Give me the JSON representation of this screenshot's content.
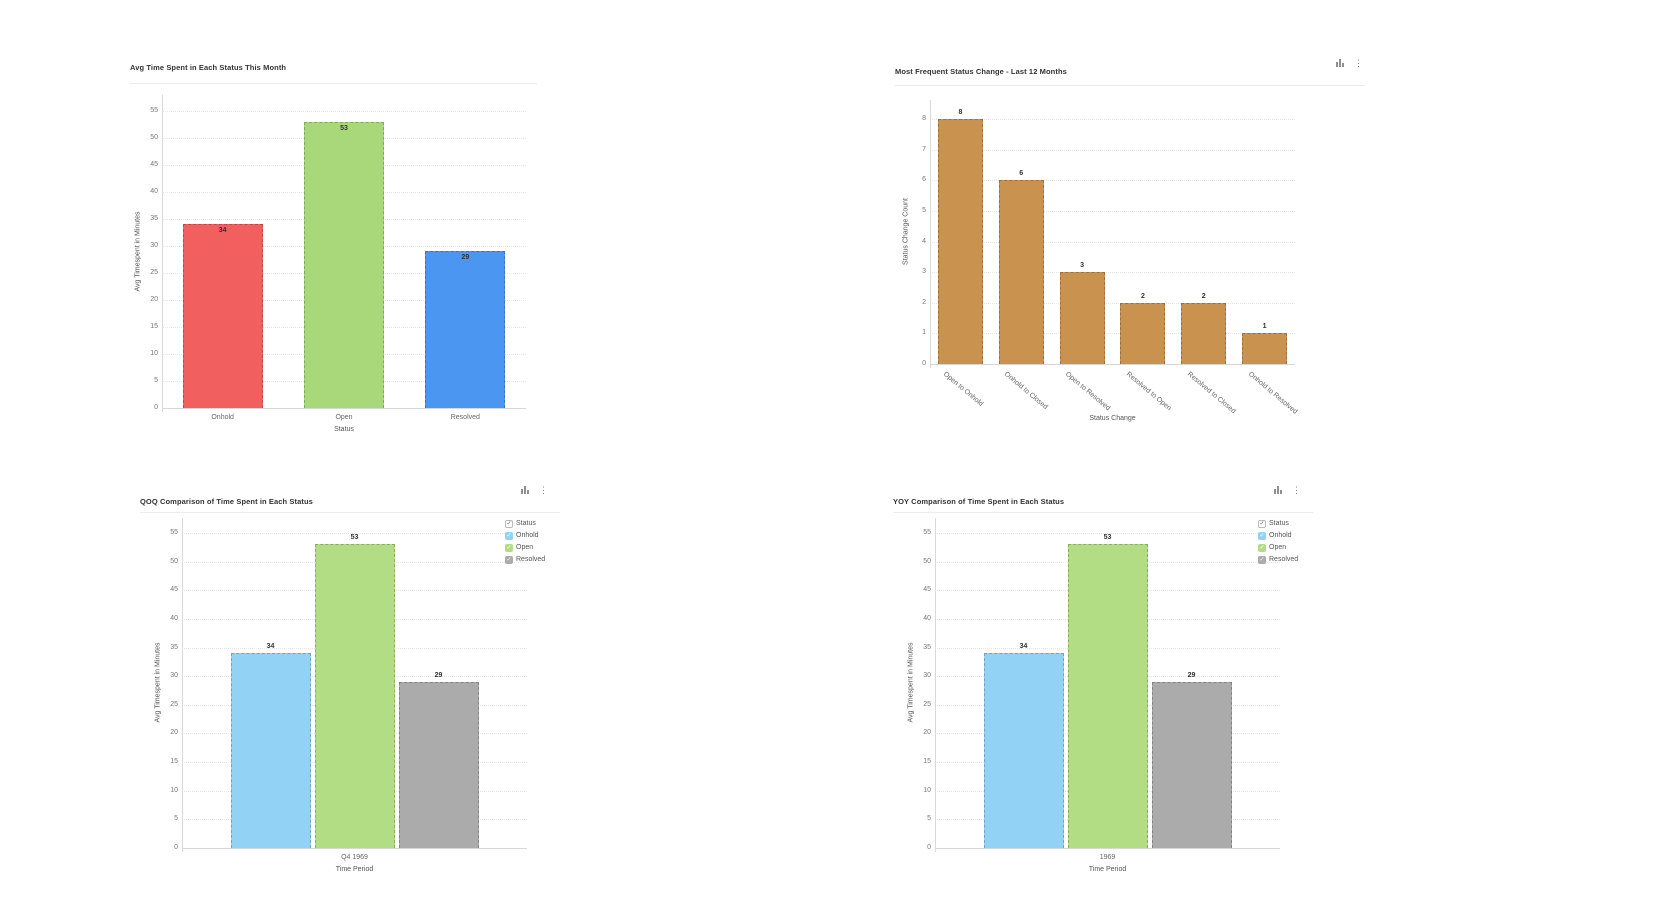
{
  "icons": {
    "chart_type": "bar-chart-icon",
    "more_options": "kebab-menu-icon",
    "kebab_glyph": "⋮",
    "legend_check_glyph": "✓"
  },
  "chart_data": [
    {
      "type": "bar",
      "title": "Avg Time Spent in Each Status This Month",
      "xlabel": "Status",
      "ylabel": "Avg Timespent in Minutes",
      "ylim": [
        0,
        55
      ],
      "ytick_step": 5,
      "grid": true,
      "legend": null,
      "categories": [
        "Onhold",
        "Open",
        "Resolved"
      ],
      "values": [
        34,
        53,
        29
      ],
      "bar_colors": [
        "#f15f5f",
        "#a9d87a",
        "#4a96f0"
      ],
      "value_label_position": "inside"
    },
    {
      "type": "bar",
      "title": "Most Frequent Status Change - Last 12 Months",
      "xlabel": "Status Change",
      "ylabel": "Status Change Count",
      "ylim": [
        0,
        8
      ],
      "ytick_step": 1,
      "grid": true,
      "legend": null,
      "categories": [
        "Open to Onhold",
        "Onhold to Closed",
        "Open to Resolved",
        "Resolved to Open",
        "Resolved to Closed",
        "Onhold to Resolved"
      ],
      "values": [
        8,
        6,
        3,
        2,
        2,
        1
      ],
      "bar_colors": [
        "#c9924f",
        "#c9924f",
        "#c9924f",
        "#c9924f",
        "#c9924f",
        "#c9924f"
      ],
      "value_label_position": "above"
    },
    {
      "type": "grouped-bar",
      "title": "QOQ Comparison of Time Spent in Each Status",
      "xlabel": "Time Period",
      "ylabel": "Avg Timespent in Minutes",
      "ylim": [
        0,
        55
      ],
      "ytick_step": 5,
      "grid": true,
      "categories": [
        "Q4 1969"
      ],
      "series": [
        {
          "name": "Onhold",
          "values": [
            34
          ],
          "color": "#92d3f5"
        },
        {
          "name": "Open",
          "values": [
            53
          ],
          "color": "#b3dd85"
        },
        {
          "name": "Resolved",
          "values": [
            29
          ],
          "color": "#ababab"
        }
      ],
      "legend": {
        "title": "Status",
        "items": [
          "Onhold",
          "Open",
          "Resolved"
        ],
        "position": "top-right"
      },
      "value_label_position": "above"
    },
    {
      "type": "grouped-bar",
      "title": "YOY Comparison of Time Spent in Each Status",
      "xlabel": "Time Period",
      "ylabel": "Avg Timespent in Minutes",
      "ylim": [
        0,
        55
      ],
      "ytick_step": 5,
      "grid": true,
      "categories": [
        "1969"
      ],
      "series": [
        {
          "name": "Onhold",
          "values": [
            34
          ],
          "color": "#92d3f5"
        },
        {
          "name": "Open",
          "values": [
            53
          ],
          "color": "#b3dd85"
        },
        {
          "name": "Resolved",
          "values": [
            29
          ],
          "color": "#ababab"
        }
      ],
      "legend": {
        "title": "Status",
        "items": [
          "Onhold",
          "Open",
          "Resolved"
        ],
        "position": "top-right"
      },
      "value_label_position": "above"
    }
  ]
}
